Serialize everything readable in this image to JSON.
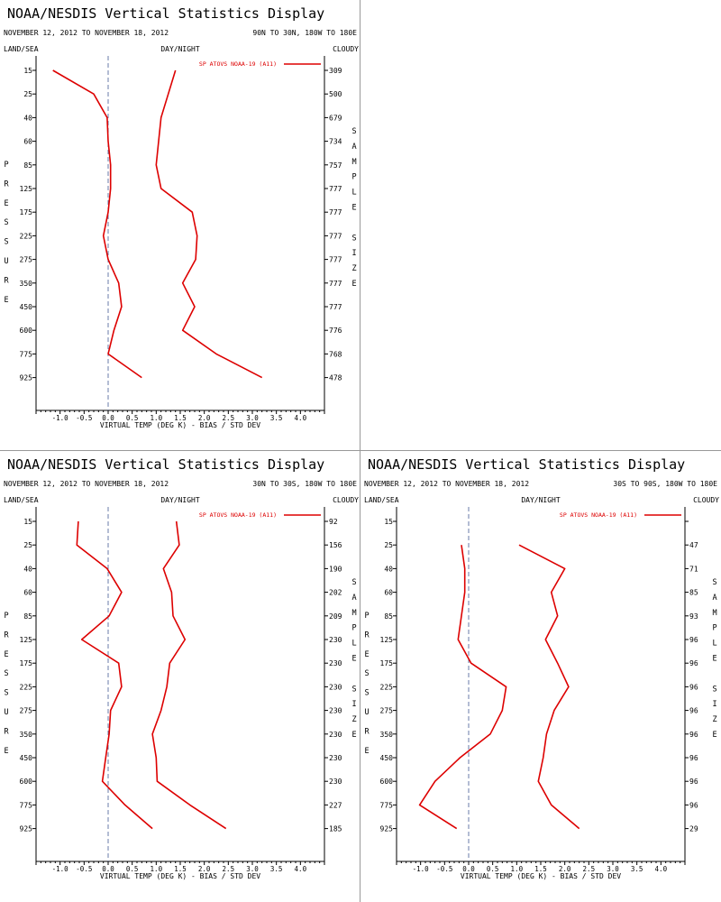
{
  "display_title": "NOAA/NESDIS Vertical Statistics Display",
  "date_range": "NOVEMBER 12, 2012 TO NOVEMBER 18, 2012",
  "header_left": "LAND/SEA",
  "header_mid": "DAY/NIGHT",
  "header_right": "CLOUDY",
  "legend_label": "SP ATOVS NOAA-19 (A11)",
  "x_label": "VIRTUAL TEMP (DEG K) - BIAS / STD DEV",
  "y_side_label": "PRESSURE",
  "sample_side_label": "SAMPLE SIZE",
  "colors": {
    "line": "#dd0000",
    "axis": "#000000",
    "zero_line": "#6a7ba8",
    "divider": "#999999"
  },
  "chart_data": [
    {
      "type": "line",
      "region": "90N TO 30N, 180W TO 180E",
      "pressure_levels": [
        15,
        25,
        40,
        60,
        85,
        125,
        175,
        225,
        275,
        350,
        450,
        600,
        775,
        925
      ],
      "xlim": [
        -1.5,
        4.5
      ],
      "x_ticks": [
        "-1.0",
        "-0.5",
        "0.0",
        "0.5",
        "1.0",
        "1.5",
        "2.0",
        "2.5",
        "3.0",
        "3.5",
        "4.0"
      ],
      "series": [
        {
          "name": "bias",
          "values": [
            -1.15,
            -0.3,
            -0.02,
            0.0,
            0.05,
            0.05,
            0.0,
            -0.1,
            0.0,
            0.22,
            0.28,
            0.12,
            0.0,
            0.7
          ]
        },
        {
          "name": "std_dev",
          "values": [
            1.4,
            1.25,
            1.1,
            1.05,
            1.0,
            1.1,
            1.75,
            1.85,
            1.82,
            1.55,
            1.8,
            1.55,
            2.25,
            3.2
          ]
        }
      ],
      "sample_size": [
        "309",
        "500",
        "679",
        "734",
        "757",
        "777",
        "777",
        "777",
        "777",
        "777",
        "777",
        "776",
        "768",
        "478"
      ]
    },
    {
      "type": "line",
      "region": "30N TO 30S, 180W TO 180E",
      "pressure_levels": [
        15,
        25,
        40,
        60,
        85,
        125,
        175,
        225,
        275,
        350,
        450,
        600,
        775,
        925
      ],
      "xlim": [
        -1.5,
        4.5
      ],
      "x_ticks": [
        "-1.0",
        "-0.5",
        "0.0",
        "0.5",
        "1.0",
        "1.5",
        "2.0",
        "2.5",
        "3.0",
        "3.5",
        "4.0"
      ],
      "series": [
        {
          "name": "bias",
          "values": [
            -0.62,
            -0.65,
            -0.02,
            0.28,
            0.02,
            -0.55,
            0.22,
            0.28,
            0.05,
            0.02,
            -0.05,
            -0.12,
            0.35,
            0.92
          ]
        },
        {
          "name": "std_dev",
          "values": [
            1.42,
            1.48,
            1.15,
            1.32,
            1.35,
            1.6,
            1.28,
            1.22,
            1.1,
            0.92,
            1.0,
            1.02,
            1.7,
            2.45
          ]
        }
      ],
      "sample_size": [
        "92",
        "156",
        "190",
        "202",
        "209",
        "230",
        "230",
        "230",
        "230",
        "230",
        "230",
        "230",
        "227",
        "185"
      ]
    },
    {
      "type": "line",
      "region": "30S TO 90S, 180W TO 180E",
      "pressure_levels": [
        15,
        25,
        40,
        60,
        85,
        125,
        175,
        225,
        275,
        350,
        450,
        600,
        775,
        925
      ],
      "xlim": [
        -1.5,
        4.5
      ],
      "x_ticks": [
        "-1.0",
        "-0.5",
        "0.0",
        "0.5",
        "1.0",
        "1.5",
        "2.0",
        "2.5",
        "3.0",
        "3.5",
        "4.0"
      ],
      "series": [
        {
          "name": "bias",
          "values": [
            null,
            -0.15,
            -0.08,
            -0.08,
            -0.15,
            -0.22,
            0.05,
            0.78,
            0.7,
            0.45,
            -0.18,
            -0.7,
            -1.02,
            -0.25
          ]
        },
        {
          "name": "std_dev",
          "values": [
            null,
            1.05,
            2.0,
            1.72,
            1.85,
            1.6,
            1.85,
            2.08,
            1.78,
            1.62,
            1.55,
            1.45,
            1.72,
            2.3
          ]
        }
      ],
      "sample_size": [
        "",
        "47",
        "71",
        "85",
        "93",
        "96",
        "96",
        "96",
        "96",
        "96",
        "96",
        "96",
        "96",
        "29"
      ]
    }
  ]
}
